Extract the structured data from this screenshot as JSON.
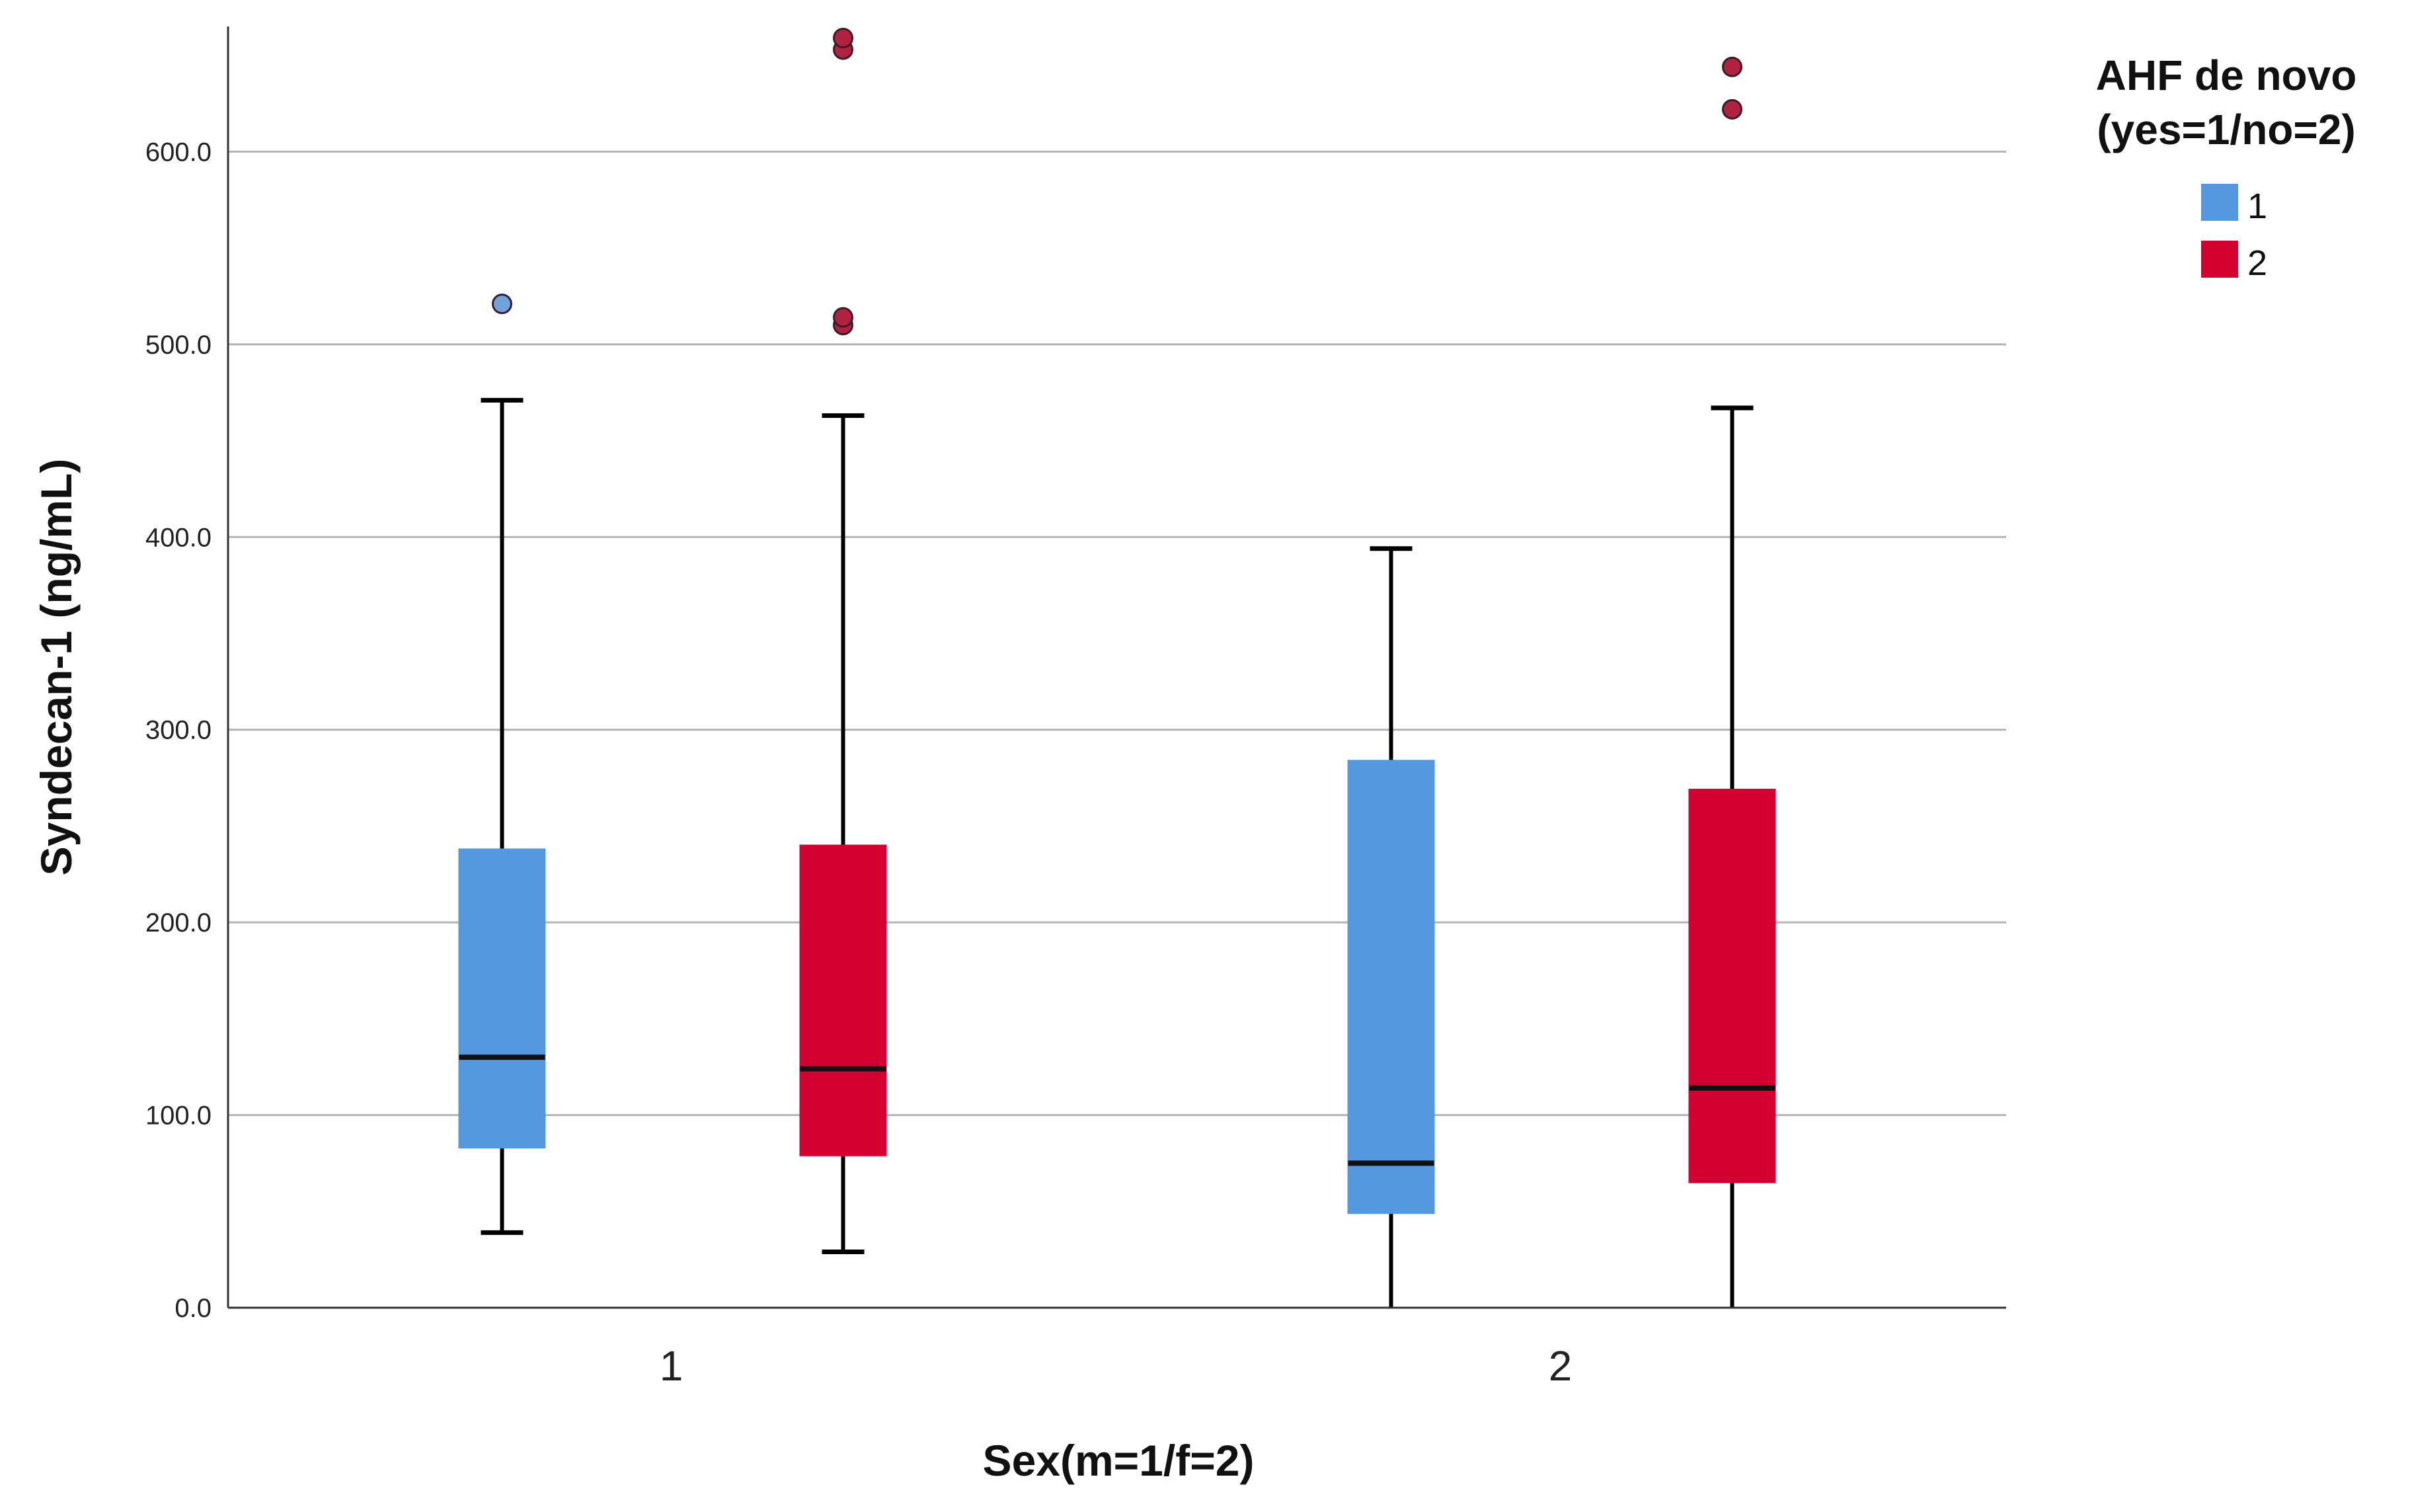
{
  "chart_data": {
    "type": "boxplot",
    "xlabel": "Sex(m=1/f=2)",
    "ylabel": "Syndecan-1 (ng/mL)",
    "ylim": [
      0,
      665
    ],
    "yticks": [
      0,
      100,
      200,
      300,
      400,
      500,
      600
    ],
    "ytick_labels": [
      "0.0",
      "100.0",
      "200.0",
      "300.0",
      "400.0",
      "500.0",
      "600.0"
    ],
    "grid": true,
    "categories": [
      "1",
      "2"
    ],
    "legend": {
      "title_line1": "AHF de novo",
      "title_line2": "(yes=1/no=2)",
      "placement": "right",
      "entries": [
        "1",
        "2"
      ]
    },
    "series": [
      {
        "name": "1",
        "color": "#5499e0",
        "outlier_color": "#6fa3dc",
        "boxes": [
          {
            "category": "1",
            "whisker_low": 39,
            "q1": 83,
            "median": 130,
            "q3": 238,
            "whisker_high": 471,
            "outliers": [
              521
            ]
          },
          {
            "category": "2",
            "whisker_low": 0,
            "q1": 49,
            "median": 75,
            "q3": 284,
            "whisker_high": 394,
            "outliers": []
          }
        ]
      },
      {
        "name": "2",
        "color": "#d40030",
        "outlier_color": "#b0223e",
        "boxes": [
          {
            "category": "1",
            "whisker_low": 29,
            "q1": 79,
            "median": 124,
            "q3": 240,
            "whisker_high": 463,
            "outliers": [
              510,
              514,
              653,
              659
            ]
          },
          {
            "category": "2",
            "whisker_low": 0,
            "q1": 65,
            "median": 114,
            "q3": 269,
            "whisker_high": 467,
            "outliers": [
              622,
              644
            ]
          }
        ]
      }
    ]
  }
}
